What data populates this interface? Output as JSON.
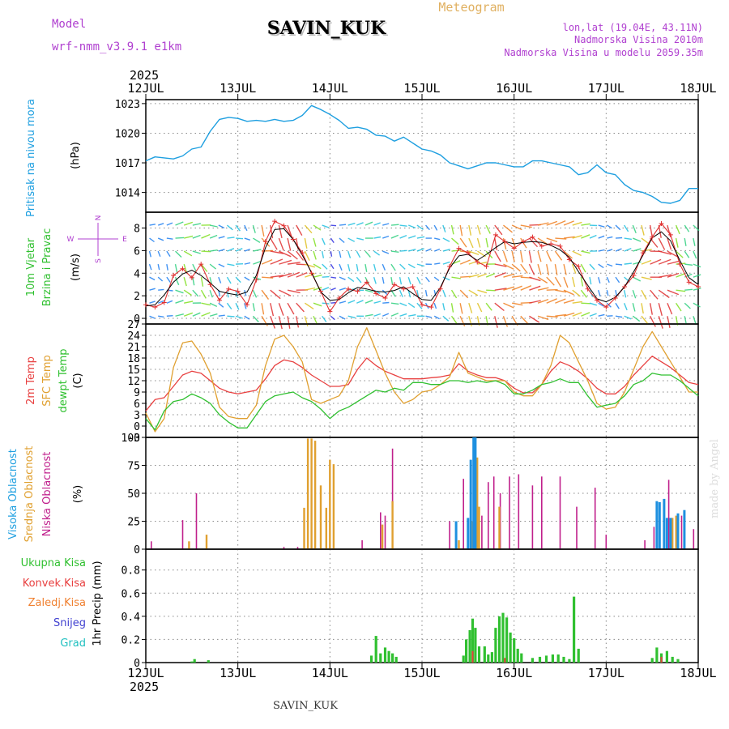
{
  "header": {
    "station": "SAVIN_KUK",
    "title": "Meteogram",
    "model_label": "Model",
    "model_name": "wrf-nmm_v3.9.1  e1km",
    "lonlat": "lon,lat (19.04E, 43.11N)",
    "elevation": "Nadmorska Visina 2010m",
    "elevation_model": "Nadmorska Visina u modelu 2059.35m",
    "footer_station": "SAVIN_KUK",
    "credit": "made by Angel",
    "year_top": "2025",
    "year_bottom": "2025"
  },
  "time_axis": {
    "labels": [
      "12JUL",
      "13JUL",
      "14JUL",
      "15JUL",
      "16JUL",
      "17JUL",
      "18JUL"
    ]
  },
  "colors": {
    "pressure": "#1e9fe0",
    "temp2m": "#e84040",
    "sfc": "#e0a030",
    "dew": "#30c030",
    "wind_speed": "#e03030",
    "wind_mean": "#000000",
    "high_cloud": "#1e90e0",
    "mid_cloud": "#e0a030",
    "low_cloud": "#c0208c",
    "precip_total": "#30c030",
    "precip_conv": "#e84040",
    "precip_frozen": "#f08030",
    "precip_snow": "#4040d0",
    "precip_hail": "#20c0c0",
    "compass": "#b040d0"
  },
  "panels": {
    "pressure": {
      "label": "Pritisak na nivou mora",
      "unit": "(hPa)"
    },
    "wind": {
      "label1": "10m Vjetar",
      "label2": "Brzina i Pravac",
      "unit": "(m/s)",
      "compass": {
        "n": "N",
        "w": "W",
        "e": "E",
        "s": "S"
      }
    },
    "temp": {
      "label1": "2m Temp",
      "label2": "SFC Temp",
      "label3": "dewpt Temp",
      "unit": "(C)"
    },
    "cloud": {
      "label1": "Visoka Oblacnost",
      "label2": "Srednja Oblacnost",
      "label3": "Niska Oblacnost",
      "unit": "(%)"
    },
    "precip": {
      "legend": [
        "Ukupna Kisa",
        "Konvek.Kisa",
        "Zaledj.Kisa",
        "Snijeg",
        "Grad"
      ],
      "ylabel": "1hr Precip (mm)"
    }
  },
  "chart_data": [
    {
      "type": "line",
      "name_key": "pressure",
      "ylim": [
        1012,
        1023.4
      ],
      "yticks": [
        "1014",
        "1017",
        "1020",
        "1023"
      ],
      "x_days": [
        0,
        0.1,
        0.2,
        0.3,
        0.4,
        0.5,
        0.6,
        0.7,
        0.8,
        0.9,
        1.0,
        1.1,
        1.2,
        1.3,
        1.4,
        1.5,
        1.6,
        1.7,
        1.8,
        1.9,
        2.0,
        2.1,
        2.2,
        2.3,
        2.4,
        2.5,
        2.6,
        2.7,
        2.8,
        2.9,
        3.0,
        3.1,
        3.2,
        3.3,
        3.4,
        3.5,
        3.6,
        3.7,
        3.8,
        3.9,
        4.0,
        4.1,
        4.2,
        4.3,
        4.4,
        4.5,
        4.6,
        4.7,
        4.8,
        4.9,
        5.0,
        5.1,
        5.2,
        5.3,
        5.4,
        5.5,
        5.6,
        5.7,
        5.8,
        5.9,
        6.0
      ],
      "values": [
        1017.2,
        1017.6,
        1017.5,
        1017.4,
        1017.7,
        1018.4,
        1018.6,
        1020.2,
        1021.4,
        1021.6,
        1021.5,
        1021.2,
        1021.3,
        1021.2,
        1021.4,
        1021.2,
        1021.3,
        1021.8,
        1022.8,
        1022.4,
        1021.9,
        1021.3,
        1020.5,
        1020.6,
        1020.4,
        1019.8,
        1019.7,
        1019.2,
        1019.6,
        1019.0,
        1018.4,
        1018.2,
        1017.8,
        1017.0,
        1016.7,
        1016.4,
        1016.7,
        1017.0,
        1017.0,
        1016.8,
        1016.6,
        1016.6,
        1017.2,
        1017.2,
        1017.0,
        1016.8,
        1016.6,
        1015.8,
        1016.0,
        1016.8,
        1016.0,
        1015.8,
        1014.8,
        1014.2,
        1014.0,
        1013.6,
        1013.0,
        1012.9,
        1013.2,
        1014.4,
        1014.4
      ]
    },
    {
      "type": "scatter",
      "name_key": "wind",
      "ylim": [
        -0.5,
        9.4
      ],
      "yticks": [
        "0",
        "2",
        "4",
        "6",
        "8"
      ],
      "x_days": [
        0,
        0.1,
        0.2,
        0.3,
        0.4,
        0.5,
        0.6,
        0.7,
        0.8,
        0.9,
        1.0,
        1.1,
        1.2,
        1.3,
        1.4,
        1.5,
        1.6,
        1.7,
        1.8,
        1.9,
        2.0,
        2.1,
        2.2,
        2.3,
        2.4,
        2.5,
        2.6,
        2.7,
        2.8,
        2.9,
        3.0,
        3.1,
        3.2,
        3.3,
        3.4,
        3.5,
        3.6,
        3.7,
        3.8,
        3.9,
        4.0,
        4.1,
        4.2,
        4.3,
        4.4,
        4.5,
        4.6,
        4.7,
        4.8,
        4.9,
        5.0,
        5.1,
        5.2,
        5.3,
        5.4,
        5.5,
        5.6,
        5.7,
        5.8,
        5.9,
        6.0
      ],
      "speed": [
        1.2,
        1.0,
        1.4,
        3.8,
        4.4,
        3.6,
        4.8,
        3.0,
        1.6,
        2.6,
        2.4,
        1.2,
        3.4,
        6.8,
        8.6,
        8.2,
        7.0,
        5.8,
        4.0,
        2.4,
        0.6,
        1.8,
        2.6,
        2.4,
        3.2,
        2.2,
        1.8,
        3.0,
        2.6,
        2.8,
        1.2,
        1.0,
        2.6,
        4.6,
        6.2,
        5.8,
        5.0,
        4.6,
        7.4,
        6.8,
        6.2,
        6.8,
        7.2,
        6.4,
        6.6,
        6.4,
        5.2,
        4.6,
        2.6,
        1.6,
        1.0,
        1.8,
        2.8,
        3.8,
        5.8,
        7.2,
        8.4,
        7.4,
        4.8,
        3.2,
        2.8
      ]
    },
    {
      "type": "line",
      "name_key": "temp",
      "ylim": [
        -3,
        27
      ],
      "yticks": [
        "-3",
        "0",
        "3",
        "6",
        "9",
        "12",
        "15",
        "18",
        "21",
        "24",
        "27"
      ],
      "x_days": [
        0,
        0.1,
        0.2,
        0.3,
        0.4,
        0.5,
        0.6,
        0.7,
        0.8,
        0.9,
        1.0,
        1.1,
        1.2,
        1.3,
        1.4,
        1.5,
        1.6,
        1.7,
        1.8,
        1.9,
        2.0,
        2.1,
        2.2,
        2.3,
        2.4,
        2.5,
        2.6,
        2.7,
        2.8,
        2.9,
        3.0,
        3.1,
        3.2,
        3.3,
        3.4,
        3.5,
        3.6,
        3.7,
        3.8,
        3.9,
        4.0,
        4.1,
        4.2,
        4.3,
        4.4,
        4.5,
        4.6,
        4.7,
        4.8,
        4.9,
        5.0,
        5.1,
        5.2,
        5.3,
        5.4,
        5.5,
        5.6,
        5.7,
        5.8,
        5.9,
        6.0
      ],
      "series": [
        {
          "key": "temp2m",
          "values": [
            4.0,
            7.0,
            7.5,
            10.5,
            13.5,
            14.5,
            14.0,
            12.0,
            10.0,
            9.0,
            8.5,
            9.0,
            9.5,
            12.5,
            16.0,
            17.5,
            17.0,
            15.5,
            13.5,
            12.0,
            10.5,
            10.5,
            11.0,
            15.0,
            18.0,
            16.0,
            14.5,
            13.5,
            12.5,
            12.5,
            12.5,
            12.8,
            13.0,
            13.5,
            16.5,
            14.5,
            13.5,
            12.8,
            12.8,
            12.0,
            10.0,
            8.8,
            8.8,
            11.0,
            14.5,
            17.0,
            16.0,
            14.5,
            12.5,
            10.0,
            8.5,
            8.5,
            10.5,
            13.5,
            16.0,
            18.5,
            17.0,
            15.5,
            13.5,
            11.5,
            11.0
          ]
        },
        {
          "key": "sfc",
          "values": [
            3.5,
            -1.5,
            2.0,
            15.5,
            22.0,
            22.5,
            19.0,
            14.0,
            5.0,
            2.5,
            2.0,
            2.0,
            5.5,
            16.0,
            23.0,
            24.0,
            21.0,
            17.0,
            7.0,
            6.0,
            7.0,
            8.0,
            12.0,
            21.0,
            26.0,
            20.0,
            14.0,
            9.0,
            6.0,
            7.0,
            9.0,
            9.5,
            11.0,
            13.0,
            19.5,
            14.0,
            13.0,
            12.0,
            12.0,
            12.0,
            9.0,
            8.0,
            8.0,
            11.0,
            16.0,
            24.0,
            22.0,
            17.0,
            12.0,
            6.0,
            4.5,
            5.0,
            9.0,
            15.0,
            21.0,
            25.0,
            21.0,
            17.0,
            13.0,
            9.0,
            9.0
          ]
        },
        {
          "key": "dew",
          "values": [
            2.0,
            -1.0,
            4.0,
            6.5,
            7.0,
            8.5,
            7.5,
            6.0,
            3.0,
            1.0,
            -0.5,
            -0.5,
            3.0,
            6.5,
            8.0,
            8.5,
            9.0,
            7.5,
            6.5,
            4.5,
            2.0,
            4.0,
            5.0,
            6.5,
            8.0,
            9.5,
            9.0,
            10.0,
            9.5,
            11.5,
            11.5,
            11.0,
            11.0,
            12.0,
            12.0,
            11.5,
            12.0,
            11.5,
            12.0,
            11.0,
            8.5,
            8.5,
            9.5,
            11.0,
            11.5,
            12.5,
            11.5,
            11.5,
            8.0,
            5.0,
            5.5,
            6.0,
            8.0,
            11.0,
            12.0,
            14.0,
            13.5,
            13.5,
            12.0,
            10.0,
            8.0
          ]
        }
      ]
    },
    {
      "type": "bar",
      "name_key": "cloud",
      "ylim": [
        0,
        100
      ],
      "yticks": [
        "0",
        "25",
        "50",
        "75",
        "100"
      ],
      "series": [
        {
          "key": "low",
          "bars": [
            [
              0.06,
              7
            ],
            [
              0.4,
              26
            ],
            [
              0.55,
              50
            ],
            [
              1.5,
              2
            ],
            [
              1.65,
              2
            ],
            [
              1.72,
              10
            ],
            [
              2.0,
              2
            ],
            [
              2.35,
              8
            ],
            [
              2.55,
              33
            ],
            [
              2.6,
              30
            ],
            [
              2.68,
              90
            ],
            [
              3.3,
              25
            ],
            [
              3.45,
              63
            ],
            [
              3.6,
              60
            ],
            [
              3.65,
              30
            ],
            [
              3.72,
              60
            ],
            [
              3.78,
              65
            ],
            [
              3.85,
              50
            ],
            [
              3.95,
              65
            ],
            [
              4.05,
              67
            ],
            [
              4.2,
              57
            ],
            [
              4.3,
              65
            ],
            [
              4.5,
              65
            ],
            [
              4.68,
              38
            ],
            [
              4.88,
              55
            ],
            [
              5.0,
              13
            ],
            [
              5.42,
              8
            ],
            [
              5.52,
              20
            ],
            [
              5.68,
              62
            ],
            [
              5.82,
              30
            ],
            [
              5.95,
              18
            ]
          ]
        },
        {
          "key": "mid",
          "bars": [
            [
              0.47,
              7
            ],
            [
              0.66,
              13
            ],
            [
              1.72,
              37
            ],
            [
              1.76,
              99
            ],
            [
              1.8,
              99
            ],
            [
              1.84,
              97
            ],
            [
              1.9,
              57
            ],
            [
              1.96,
              37
            ],
            [
              2.0,
              80
            ],
            [
              2.04,
              76
            ],
            [
              2.57,
              22
            ],
            [
              2.68,
              43
            ],
            [
              3.4,
              8
            ],
            [
              3.55,
              25
            ],
            [
              3.6,
              82
            ],
            [
              3.62,
              38
            ],
            [
              3.84,
              38
            ],
            [
              5.72,
              28
            ],
            [
              5.76,
              30
            ]
          ]
        },
        {
          "key": "high",
          "bars": [
            [
              3.37,
              25
            ],
            [
              3.5,
              28
            ],
            [
              3.53,
              80
            ],
            [
              3.56,
              100
            ],
            [
              3.58,
              100
            ],
            [
              5.55,
              43
            ],
            [
              5.58,
              42
            ],
            [
              5.63,
              45
            ],
            [
              5.66,
              28
            ],
            [
              5.7,
              28
            ],
            [
              5.78,
              32
            ],
            [
              5.85,
              35
            ]
          ]
        }
      ]
    },
    {
      "type": "bar",
      "name_key": "precip",
      "ylim": [
        0,
        0.98
      ],
      "yticks": [
        "0",
        "0.2",
        "0.4",
        "0.6",
        "0.8"
      ],
      "series": [
        {
          "key": "total",
          "bars": [
            [
              0.5,
              0.01
            ],
            [
              0.53,
              0.03
            ],
            [
              0.68,
              0.02
            ],
            [
              2.45,
              0.06
            ],
            [
              2.5,
              0.23
            ],
            [
              2.55,
              0.08
            ],
            [
              2.6,
              0.13
            ],
            [
              2.64,
              0.1
            ],
            [
              2.68,
              0.08
            ],
            [
              2.72,
              0.05
            ],
            [
              3.45,
              0.06
            ],
            [
              3.48,
              0.2
            ],
            [
              3.52,
              0.28
            ],
            [
              3.55,
              0.38
            ],
            [
              3.58,
              0.3
            ],
            [
              3.62,
              0.14
            ],
            [
              3.68,
              0.14
            ],
            [
              3.72,
              0.07
            ],
            [
              3.76,
              0.09
            ],
            [
              3.8,
              0.3
            ],
            [
              3.84,
              0.4
            ],
            [
              3.88,
              0.43
            ],
            [
              3.92,
              0.39
            ],
            [
              3.96,
              0.26
            ],
            [
              4.0,
              0.21
            ],
            [
              4.04,
              0.12
            ],
            [
              4.08,
              0.08
            ],
            [
              4.2,
              0.04
            ],
            [
              4.28,
              0.05
            ],
            [
              4.35,
              0.06
            ],
            [
              4.42,
              0.07
            ],
            [
              4.48,
              0.07
            ],
            [
              4.54,
              0.05
            ],
            [
              4.6,
              0.03
            ],
            [
              4.65,
              0.57
            ],
            [
              4.7,
              0.12
            ],
            [
              5.5,
              0.04
            ],
            [
              5.55,
              0.13
            ],
            [
              5.6,
              0.08
            ],
            [
              5.66,
              0.1
            ],
            [
              5.72,
              0.05
            ],
            [
              5.78,
              0.03
            ]
          ]
        },
        {
          "key": "conv",
          "bars": [
            [
              3.55,
              0.1
            ],
            [
              3.9,
              0.04
            ],
            [
              5.6,
              0.05
            ]
          ]
        }
      ]
    }
  ]
}
